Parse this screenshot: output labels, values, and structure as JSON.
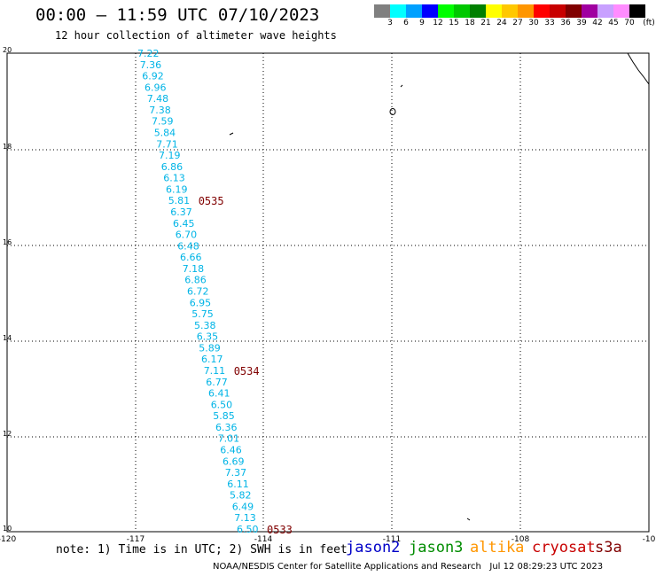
{
  "header": {
    "title": "00:00 – 11:59 UTC 07/10/2023",
    "subtitle": "12 hour collection of altimeter wave heights"
  },
  "colorscale": {
    "colors": [
      "#808080",
      "#00ffff",
      "#00a0ff",
      "#0000ff",
      "#00ff00",
      "#00c800",
      "#008000",
      "#ffff00",
      "#ffc800",
      "#ff9600",
      "#ff0000",
      "#c80000",
      "#800000",
      "#a000a0",
      "#c8a0ff",
      "#ff8cff",
      "#000000"
    ],
    "labels": [
      "3",
      "6",
      "9",
      "12",
      "15",
      "18",
      "21",
      "24",
      "27",
      "30",
      "33",
      "36",
      "39",
      "42",
      "45",
      "70",
      "(ft)"
    ]
  },
  "map": {
    "x_ticks": [
      "-120",
      "-117",
      "-114",
      "-111",
      "-108",
      "-10"
    ],
    "y_ticks": [
      "20",
      "18",
      "16",
      "14",
      "12",
      "10"
    ],
    "track_color": "#00b4e6",
    "time_color": "#800000",
    "wave_heights": [
      "7.22",
      "7.36",
      "6.92",
      "6.96",
      "7.48",
      "7.38",
      "7.59",
      "5.84",
      "7.71",
      "7.19",
      "6.86",
      "6.13",
      "6.19",
      "5.81",
      "6.37",
      "6.45",
      "6.70",
      "6.48",
      "6.66",
      "7.18",
      "6.86",
      "6.72",
      "6.95",
      "5.75",
      "5.38",
      "6.35",
      "5.89",
      "6.17",
      "7.11",
      "6.77",
      "6.41",
      "6.50",
      "5.85",
      "6.36",
      "7.01",
      "6.46",
      "6.69",
      "7.37",
      "6.11",
      "5.82",
      "6.49",
      "7.13",
      "6.50"
    ],
    "pass_times": [
      {
        "label": "0535",
        "index": 13
      },
      {
        "label": "0534",
        "index": 28
      },
      {
        "label": "0533",
        "index": 42
      }
    ]
  },
  "footer": {
    "note": "note: 1) Time is in UTC; 2) SWH is in feet",
    "satellites": [
      {
        "name": "jason2",
        "color": "#0000c8"
      },
      {
        "name": "jason3",
        "color": "#008c00"
      },
      {
        "name": "altika",
        "color": "#ff9600"
      },
      {
        "name": "cryosat",
        "color": "#c80000"
      },
      {
        "name": "s3a",
        "color": "#800000"
      }
    ],
    "credit": "NOAA/NESDIS Center for Satellite Applications and Research   Jul 12 08:29:23 UTC 2023"
  }
}
